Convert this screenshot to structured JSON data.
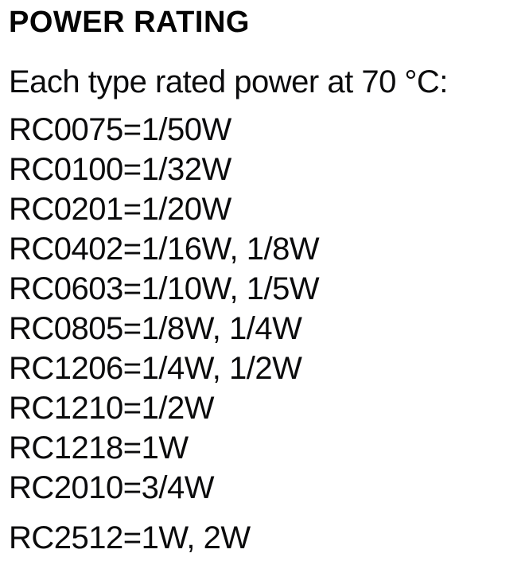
{
  "doc": {
    "title": "POWER RATING",
    "intro": "Each type rated power at 70 °C:",
    "ratings": [
      {
        "code": "RC0075",
        "powers": [
          "1/50W"
        ],
        "line": "RC0075=1/50W"
      },
      {
        "code": "RC0100",
        "powers": [
          "1/32W"
        ],
        "line": "RC0100=1/32W"
      },
      {
        "code": "RC0201",
        "powers": [
          "1/20W"
        ],
        "line": "RC0201=1/20W"
      },
      {
        "code": "RC0402",
        "powers": [
          "1/16W",
          "1/8W"
        ],
        "line": "RC0402=1/16W, 1/8W"
      },
      {
        "code": "RC0603",
        "powers": [
          "1/10W",
          "1/5W"
        ],
        "line": "RC0603=1/10W, 1/5W"
      },
      {
        "code": "RC0805",
        "powers": [
          "1/8W",
          "1/4W"
        ],
        "line": "RC0805=1/8W, 1/4W"
      },
      {
        "code": "RC1206",
        "powers": [
          "1/4W",
          "1/2W"
        ],
        "line": "RC1206=1/4W, 1/2W"
      },
      {
        "code": "RC1210",
        "powers": [
          "1/2W"
        ],
        "line": "RC1210=1/2W"
      },
      {
        "code": "RC1218",
        "powers": [
          "1W"
        ],
        "line": "RC1218=1W"
      },
      {
        "code": "RC2010",
        "powers": [
          "3/4W"
        ],
        "line": "RC2010=3/4W"
      },
      {
        "code": "RC2512",
        "powers": [
          "1W",
          "2W"
        ],
        "line": "RC2512=1W, 2W"
      }
    ],
    "text_color": "#0b0b0c",
    "background_color": "#ffffff"
  }
}
